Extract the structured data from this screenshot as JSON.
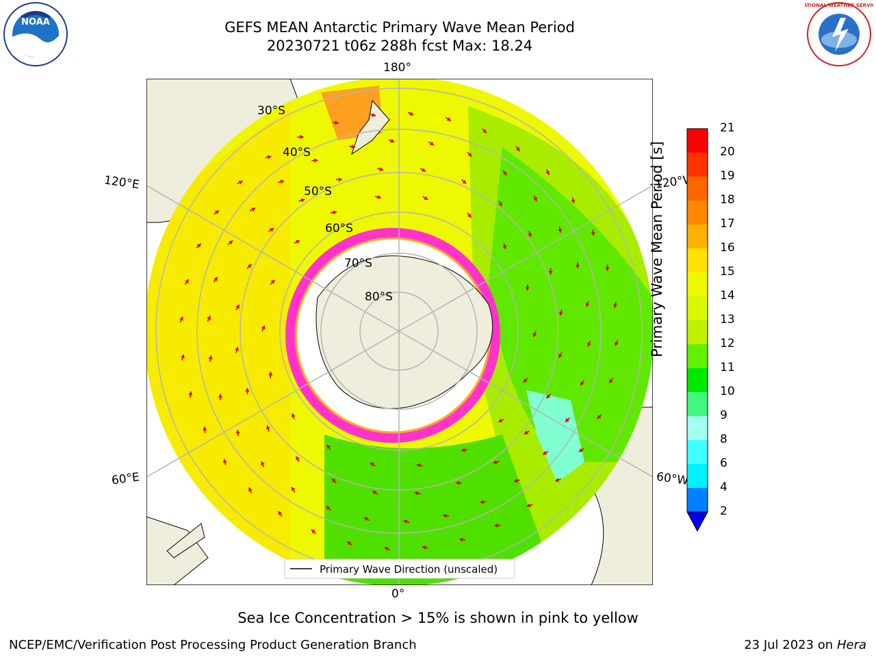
{
  "title_line1": "GEFS MEAN Antarctic Primary Wave Mean Period",
  "title_line2": "20230721 t06z 288h fcst   Max: 18.24",
  "lon_labels": {
    "top": "180°",
    "bottom": "0°",
    "upper_left": "120°E",
    "lower_left": "60°E",
    "upper_right": "120°W",
    "lower_right": "60°W"
  },
  "lat_labels": [
    "30°S",
    "40°S",
    "50°S",
    "60°S",
    "70°S",
    "80°S"
  ],
  "legend_label": "Primary Wave Direction (unscaled)",
  "colorbar": {
    "label": "Primary Wave Mean Period [s]",
    "ticks": [
      "21",
      "20",
      "19",
      "18",
      "17",
      "16",
      "15",
      "14",
      "13",
      "12",
      "11",
      "10",
      "9",
      "8",
      "6",
      "4",
      "2"
    ],
    "colors": [
      "#ff0000",
      "#ff3300",
      "#ff6600",
      "#ff8800",
      "#ffb000",
      "#ffe000",
      "#f0f800",
      "#d8f800",
      "#c0f000",
      "#60f000",
      "#00e800",
      "#40f880",
      "#a0fff0",
      "#40ffff",
      "#00f0ff",
      "#0080ff",
      "#0000ee"
    ]
  },
  "subtitle": "Sea Ice Concentration > 15% is shown in pink to yellow",
  "footer_left": "NCEP/EMC/Verification Post Processing Product Generation Branch",
  "footer_right_prefix": "23 Jul 2023 on ",
  "footer_right_host": "Hera",
  "logos": {
    "noaa_text": "NOAA",
    "nws_text": "NATIONAL WEATHER SERVICE"
  }
}
